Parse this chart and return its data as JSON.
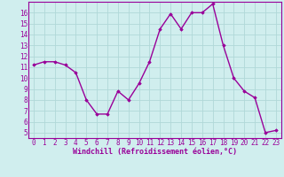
{
  "x": [
    0,
    1,
    2,
    3,
    4,
    5,
    6,
    7,
    8,
    9,
    10,
    11,
    12,
    13,
    14,
    15,
    16,
    17,
    18,
    19,
    20,
    21,
    22,
    23
  ],
  "y": [
    11.2,
    11.5,
    11.5,
    11.2,
    10.5,
    8.0,
    6.7,
    6.7,
    8.8,
    8.0,
    9.5,
    11.5,
    14.5,
    15.9,
    14.5,
    16.0,
    16.0,
    16.8,
    13.0,
    10.0,
    8.8,
    8.2,
    5.0,
    5.2
  ],
  "line_color": "#990099",
  "marker": "D",
  "marker_size": 1.8,
  "bg_color": "#d0eeee",
  "grid_color": "#b0d8d8",
  "xlabel": "Windchill (Refroidissement éolien,°C)",
  "xlabel_color": "#990099",
  "tick_color": "#990099",
  "ylim": [
    4.5,
    17
  ],
  "xlim": [
    -0.5,
    23.5
  ],
  "yticks": [
    5,
    6,
    7,
    8,
    9,
    10,
    11,
    12,
    13,
    14,
    15,
    16
  ],
  "xticks": [
    0,
    1,
    2,
    3,
    4,
    5,
    6,
    7,
    8,
    9,
    10,
    11,
    12,
    13,
    14,
    15,
    16,
    17,
    18,
    19,
    20,
    21,
    22,
    23
  ],
  "spine_color": "#990099",
  "line_width": 1.0,
  "tick_fontsize": 5.5,
  "xlabel_fontsize": 6.0
}
